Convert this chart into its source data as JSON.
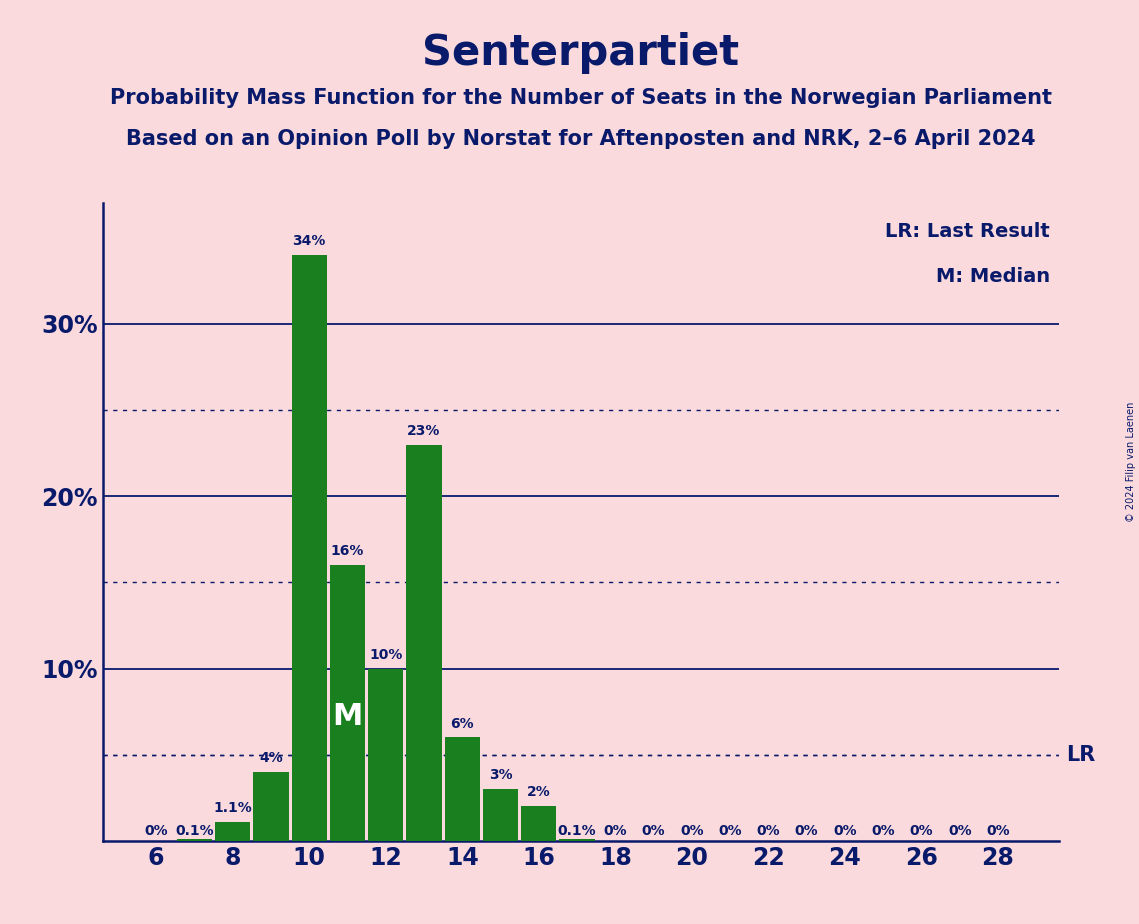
{
  "title": "Senterpartiet",
  "subtitle1": "Probability Mass Function for the Number of Seats in the Norwegian Parliament",
  "subtitle2": "Based on an Opinion Poll by Norstat for Aftenposten and NRK, 2–6 April 2024",
  "copyright": "© 2024 Filip van Laenen",
  "seats": [
    6,
    7,
    8,
    9,
    10,
    11,
    12,
    13,
    14,
    15,
    16,
    17,
    18,
    19,
    20,
    21,
    22,
    23,
    24,
    25,
    26,
    27,
    28
  ],
  "probabilities": [
    0.0,
    0.1,
    1.1,
    4.0,
    34.0,
    16.0,
    10.0,
    23.0,
    6.0,
    3.0,
    2.0,
    0.1,
    0.0,
    0.0,
    0.0,
    0.0,
    0.0,
    0.0,
    0.0,
    0.0,
    0.0,
    0.0,
    0.0
  ],
  "bar_labels": [
    "0%",
    "0.1%",
    "1.1%",
    "4%",
    "34%",
    "16%",
    "10%",
    "23%",
    "6%",
    "3%",
    "2%",
    "0.1%",
    "0%",
    "0%",
    "0%",
    "0%",
    "0%",
    "0%",
    "0%",
    "0%",
    "0%",
    "0%",
    "0%"
  ],
  "bar_color": "#1a7f1e",
  "background_color": "#fadadd",
  "text_color": "#0a1a6b",
  "median_seat": 11,
  "lr_value": 5.0,
  "ylim_top": 37,
  "solid_yticks": [
    10,
    20,
    30
  ],
  "dotted_yticks": [
    5,
    15,
    25
  ],
  "xlabel_ticks": [
    6,
    8,
    10,
    12,
    14,
    16,
    18,
    20,
    22,
    24,
    26,
    28
  ],
  "legend_lr": "LR: Last Result",
  "legend_m": "M: Median",
  "title_fontsize": 30,
  "subtitle_fontsize": 15,
  "ytick_fontsize": 17,
  "xtick_fontsize": 17,
  "bar_label_fontsize": 10,
  "legend_fontsize": 14,
  "median_label_fontsize": 22,
  "lr_label_fontsize": 15
}
